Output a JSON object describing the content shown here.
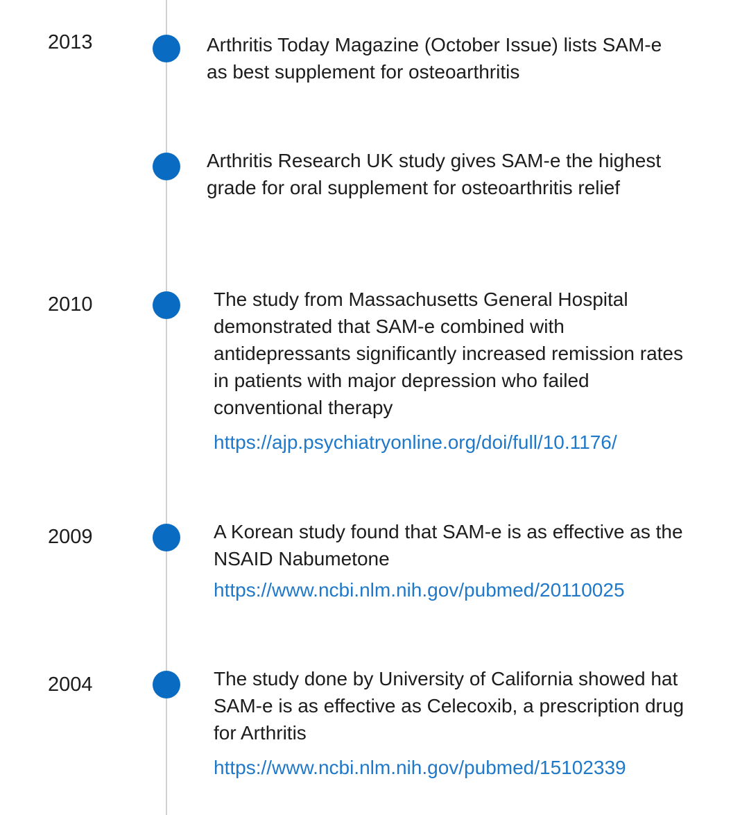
{
  "timeline": {
    "entries": [
      {
        "year": "2013",
        "text": "Arthritis Today Magazine (October Issue) lists SAM-e as best supplement for osteoarthritis",
        "link": ""
      },
      {
        "year": "",
        "text": "Arthritis Research UK study gives SAM-e the highest grade for oral supplement for osteoarthritis relief",
        "link": ""
      },
      {
        "year": "2010",
        "text": "The study from Massachusetts General Hospital demonstrated that SAM-e combined with antidepressants significantly increased remission rates in patients with major depression who failed conventional therapy",
        "link": "https://ajp.psychiatryonline.org/doi/full/10.1176/"
      },
      {
        "year": "2009",
        "text": "A Korean study found that SAM-e is as effective as the NSAID Nabumetone",
        "link": "https://www.ncbi.nlm.nih.gov/pubmed/20110025"
      },
      {
        "year": "2004",
        "text": "The study done by University of California showed hat SAM-e is as effective as Celecoxib, a prescription drug for Arthritis",
        "link": "https://www.ncbi.nlm.nih.gov/pubmed/15102339"
      }
    ]
  }
}
